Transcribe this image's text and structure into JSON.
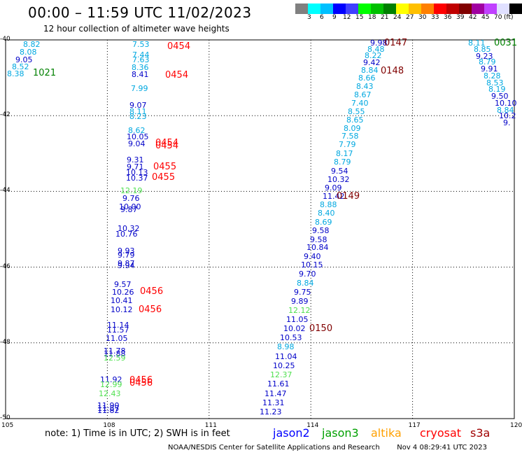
{
  "header": {
    "title": "00:00 – 11:59 UTC 11/02/2023",
    "subtitle": "12 hour collection of altimeter wave heights"
  },
  "legend": {
    "colors": [
      "#808080",
      "#00ffff",
      "#00c0ff",
      "#0000ff",
      "#4040ff",
      "#00ff00",
      "#00c000",
      "#008000",
      "#ffff00",
      "#ffc000",
      "#ff8000",
      "#ff0000",
      "#c00000",
      "#800000",
      "#a000a0",
      "#c040ff",
      "#e0e0ff",
      "#000000"
    ],
    "labels": [
      {
        "label": "3",
        "c": 1
      },
      {
        "label": "6",
        "c": 2
      },
      {
        "label": "9",
        "c": 3
      },
      {
        "label": "12",
        "c": 4
      },
      {
        "label": "15",
        "c": 5
      },
      {
        "label": "18",
        "c": 6
      },
      {
        "label": "21",
        "c": 7
      },
      {
        "label": "24",
        "c": 8
      },
      {
        "label": "27",
        "c": 9
      },
      {
        "label": "30",
        "c": 10
      },
      {
        "label": "33",
        "c": 11
      },
      {
        "label": "36",
        "c": 12
      },
      {
        "label": "39",
        "c": 13
      },
      {
        "label": "42",
        "c": 14
      },
      {
        "label": "45",
        "c": 15
      },
      {
        "label": "70",
        "c": 16
      },
      {
        "label": "(ft)",
        "c": 17
      }
    ]
  },
  "axes": {
    "lon": [
      "105",
      "108",
      "111",
      "114",
      "117",
      "120"
    ],
    "lat": [
      "-40",
      "-42",
      "-44",
      "-46",
      "-48",
      "-50"
    ],
    "lon_range": [
      105,
      120
    ],
    "lat_range": [
      -40,
      -50
    ]
  },
  "colors": {
    "cyan": "#00a8e0",
    "blue": "#0000c8",
    "green": "#50e050",
    "dark_green": "#008000",
    "red": "#ff0000",
    "dark_red": "#800000"
  },
  "measurements": [
    {
      "v": "8.82",
      "lon": 105.72,
      "lat": -40.12,
      "c": "cyan"
    },
    {
      "v": "8.08",
      "lon": 105.62,
      "lat": -40.32,
      "c": "cyan"
    },
    {
      "v": "9.05",
      "lon": 105.49,
      "lat": -40.52,
      "c": "blue"
    },
    {
      "v": "8.52",
      "lon": 105.39,
      "lat": -40.7,
      "c": "cyan"
    },
    {
      "v": "8.38",
      "lon": 105.25,
      "lat": -40.88,
      "c": "cyan"
    },
    {
      "v": "7.53",
      "lon": 108.95,
      "lat": -40.12,
      "c": "cyan"
    },
    {
      "v": "7.44",
      "lon": 108.95,
      "lat": -40.38,
      "c": "cyan"
    },
    {
      "v": "7.63",
      "lon": 108.95,
      "lat": -40.52,
      "c": "cyan"
    },
    {
      "v": "8.36",
      "lon": 108.92,
      "lat": -40.72,
      "c": "cyan"
    },
    {
      "v": "8.41",
      "lon": 108.92,
      "lat": -40.9,
      "c": "blue"
    },
    {
      "v": "7.99",
      "lon": 108.9,
      "lat": -41.28,
      "c": "cyan"
    },
    {
      "v": "9.07",
      "lon": 108.85,
      "lat": -41.72,
      "c": "blue"
    },
    {
      "v": "8.11",
      "lon": 108.85,
      "lat": -41.88,
      "c": "cyan"
    },
    {
      "v": "8.23",
      "lon": 108.85,
      "lat": -42.02,
      "c": "cyan"
    },
    {
      "v": "8.62",
      "lon": 108.82,
      "lat": -42.38,
      "c": "cyan"
    },
    {
      "v": "10.05",
      "lon": 108.78,
      "lat": -42.56,
      "c": "blue"
    },
    {
      "v": "9.04",
      "lon": 108.82,
      "lat": -42.74,
      "c": "blue"
    },
    {
      "v": "9.31",
      "lon": 108.78,
      "lat": -43.16,
      "c": "blue"
    },
    {
      "v": "9.71",
      "lon": 108.78,
      "lat": -43.34,
      "c": "blue"
    },
    {
      "v": "10.13",
      "lon": 108.75,
      "lat": -43.5,
      "c": "blue"
    },
    {
      "v": "10.37",
      "lon": 108.75,
      "lat": -43.64,
      "c": "blue"
    },
    {
      "v": "12.19",
      "lon": 108.6,
      "lat": -43.98,
      "c": "green"
    },
    {
      "v": "9.76",
      "lon": 108.65,
      "lat": -44.18,
      "c": "blue"
    },
    {
      "v": "10.00",
      "lon": 108.55,
      "lat": -44.4,
      "c": "blue"
    },
    {
      "v": "9.87",
      "lon": 108.6,
      "lat": -44.48,
      "c": "blue"
    },
    {
      "v": "10.32",
      "lon": 108.5,
      "lat": -44.98,
      "c": "blue"
    },
    {
      "v": "10.76",
      "lon": 108.45,
      "lat": -45.12,
      "c": "blue"
    },
    {
      "v": "9.93",
      "lon": 108.5,
      "lat": -45.56,
      "c": "blue"
    },
    {
      "v": "9.79",
      "lon": 108.5,
      "lat": -45.68,
      "c": "blue"
    },
    {
      "v": "9.87",
      "lon": 108.5,
      "lat": -45.9,
      "c": "blue"
    },
    {
      "v": "9.94",
      "lon": 108.5,
      "lat": -45.96,
      "c": "blue"
    },
    {
      "v": "9.57",
      "lon": 108.4,
      "lat": -46.46,
      "c": "blue"
    },
    {
      "v": "10.26",
      "lon": 108.35,
      "lat": -46.66,
      "c": "blue"
    },
    {
      "v": "10.41",
      "lon": 108.3,
      "lat": -46.88,
      "c": "blue"
    },
    {
      "v": "10.12",
      "lon": 108.3,
      "lat": -47.12,
      "c": "blue"
    },
    {
      "v": "11.14",
      "lon": 108.2,
      "lat": -47.52,
      "c": "blue"
    },
    {
      "v": "11.57",
      "lon": 108.2,
      "lat": -47.66,
      "c": "blue"
    },
    {
      "v": "11.05",
      "lon": 108.15,
      "lat": -47.88,
      "c": "blue"
    },
    {
      "v": "11.78",
      "lon": 108.1,
      "lat": -48.2,
      "c": "blue"
    },
    {
      "v": "11.88",
      "lon": 108.1,
      "lat": -48.28,
      "c": "blue"
    },
    {
      "v": "12.59",
      "lon": 108.1,
      "lat": -48.4,
      "c": "green"
    },
    {
      "v": "11.92",
      "lon": 108.0,
      "lat": -48.96,
      "c": "blue"
    },
    {
      "v": "12.99",
      "lon": 108.0,
      "lat": -49.1,
      "c": "green"
    },
    {
      "v": "12.43",
      "lon": 107.95,
      "lat": -49.34,
      "c": "green"
    },
    {
      "v": "11.90",
      "lon": 107.9,
      "lat": -49.64,
      "c": "blue"
    },
    {
      "v": "11.87",
      "lon": 107.9,
      "lat": -49.72,
      "c": "blue"
    },
    {
      "v": "11.82",
      "lon": 107.9,
      "lat": -49.78,
      "c": "blue"
    },
    {
      "v": "9.98",
      "lon": 115.95,
      "lat": -40.08,
      "c": "blue"
    },
    {
      "v": "8.48",
      "lon": 115.88,
      "lat": -40.24,
      "c": "cyan"
    },
    {
      "v": "8.22",
      "lon": 115.8,
      "lat": -40.4,
      "c": "cyan"
    },
    {
      "v": "9.42",
      "lon": 115.75,
      "lat": -40.6,
      "c": "blue"
    },
    {
      "v": "8.84",
      "lon": 115.68,
      "lat": -40.8,
      "c": "cyan"
    },
    {
      "v": "8.66",
      "lon": 115.6,
      "lat": -41.0,
      "c": "cyan"
    },
    {
      "v": "8.43",
      "lon": 115.55,
      "lat": -41.22,
      "c": "cyan"
    },
    {
      "v": "8.67",
      "lon": 115.48,
      "lat": -41.44,
      "c": "cyan"
    },
    {
      "v": "7.40",
      "lon": 115.4,
      "lat": -41.66,
      "c": "cyan"
    },
    {
      "v": "8.55",
      "lon": 115.3,
      "lat": -41.88,
      "c": "cyan"
    },
    {
      "v": "8.65",
      "lon": 115.25,
      "lat": -42.1,
      "c": "cyan"
    },
    {
      "v": "8.09",
      "lon": 115.18,
      "lat": -42.32,
      "c": "cyan"
    },
    {
      "v": "7.58",
      "lon": 115.1,
      "lat": -42.54,
      "c": "cyan"
    },
    {
      "v": "7.79",
      "lon": 115.02,
      "lat": -42.76,
      "c": "cyan"
    },
    {
      "v": "8.17",
      "lon": 114.95,
      "lat": -43.0,
      "c": "cyan"
    },
    {
      "v": "8.79",
      "lon": 114.88,
      "lat": -43.22,
      "c": "cyan"
    },
    {
      "v": "9.54",
      "lon": 114.8,
      "lat": -43.46,
      "c": "blue"
    },
    {
      "v": "10.32",
      "lon": 114.7,
      "lat": -43.68,
      "c": "blue"
    },
    {
      "v": "9.09",
      "lon": 114.62,
      "lat": -43.9,
      "c": "blue"
    },
    {
      "v": "11.42",
      "lon": 114.55,
      "lat": -44.12,
      "c": "blue"
    },
    {
      "v": "8.88",
      "lon": 114.48,
      "lat": -44.34,
      "c": "cyan"
    },
    {
      "v": "8.40",
      "lon": 114.4,
      "lat": -44.56,
      "c": "cyan"
    },
    {
      "v": "8.69",
      "lon": 114.32,
      "lat": -44.8,
      "c": "cyan"
    },
    {
      "v": "9.58",
      "lon": 114.25,
      "lat": -45.02,
      "c": "blue"
    },
    {
      "v": "9.58",
      "lon": 114.18,
      "lat": -45.26,
      "c": "blue"
    },
    {
      "v": "10.84",
      "lon": 114.08,
      "lat": -45.48,
      "c": "blue"
    },
    {
      "v": "9.40",
      "lon": 114.0,
      "lat": -45.72,
      "c": "blue"
    },
    {
      "v": "10.15",
      "lon": 113.92,
      "lat": -45.94,
      "c": "blue"
    },
    {
      "v": "9.70",
      "lon": 113.85,
      "lat": -46.18,
      "c": "blue"
    },
    {
      "v": "8.84",
      "lon": 113.78,
      "lat": -46.42,
      "c": "cyan"
    },
    {
      "v": "9.75",
      "lon": 113.7,
      "lat": -46.66,
      "c": "blue"
    },
    {
      "v": "9.89",
      "lon": 113.62,
      "lat": -46.9,
      "c": "blue"
    },
    {
      "v": "12.12",
      "lon": 113.55,
      "lat": -47.14,
      "c": "green"
    },
    {
      "v": "11.05",
      "lon": 113.48,
      "lat": -47.38,
      "c": "blue"
    },
    {
      "v": "10.02",
      "lon": 113.4,
      "lat": -47.62,
      "c": "blue"
    },
    {
      "v": "10.53",
      "lon": 113.3,
      "lat": -47.86,
      "c": "blue"
    },
    {
      "v": "8.98",
      "lon": 113.22,
      "lat": -48.1,
      "c": "cyan"
    },
    {
      "v": "11.04",
      "lon": 113.15,
      "lat": -48.36,
      "c": "blue"
    },
    {
      "v": "10.25",
      "lon": 113.08,
      "lat": -48.6,
      "c": "blue"
    },
    {
      "v": "12.37",
      "lon": 113.0,
      "lat": -48.84,
      "c": "green"
    },
    {
      "v": "11.61",
      "lon": 112.92,
      "lat": -49.08,
      "c": "blue"
    },
    {
      "v": "11.47",
      "lon": 112.85,
      "lat": -49.34,
      "c": "blue"
    },
    {
      "v": "11.31",
      "lon": 112.78,
      "lat": -49.58,
      "c": "blue"
    },
    {
      "v": "11.23",
      "lon": 112.7,
      "lat": -49.82,
      "c": "blue"
    },
    {
      "v": "8.11",
      "lon": 118.85,
      "lat": -40.08,
      "c": "cyan"
    },
    {
      "v": "8.85",
      "lon": 119.0,
      "lat": -40.24,
      "c": "cyan"
    },
    {
      "v": "9.23",
      "lon": 119.08,
      "lat": -40.42,
      "c": "blue"
    },
    {
      "v": "8.79",
      "lon": 119.15,
      "lat": -40.58,
      "c": "cyan"
    },
    {
      "v": "9.91",
      "lon": 119.22,
      "lat": -40.76,
      "c": "blue"
    },
    {
      "v": "8.28",
      "lon": 119.3,
      "lat": -40.94,
      "c": "cyan"
    },
    {
      "v": "8.53",
      "lon": 119.38,
      "lat": -41.12,
      "c": "cyan"
    },
    {
      "v": "8.19",
      "lon": 119.45,
      "lat": -41.3,
      "c": "cyan"
    },
    {
      "v": "9.50",
      "lon": 119.52,
      "lat": -41.48,
      "c": "blue"
    },
    {
      "v": "10.10",
      "lon": 119.62,
      "lat": -41.66,
      "c": "blue"
    },
    {
      "v": "8.84",
      "lon": 119.7,
      "lat": -41.84,
      "c": "cyan"
    },
    {
      "v": "10.2",
      "lon": 119.75,
      "lat": -42.0,
      "c": "blue"
    },
    {
      "v": "9.",
      "lon": 119.88,
      "lat": -42.18,
      "c": "blue"
    }
  ],
  "time_tags": [
    {
      "t": "0454",
      "lon": 110.05,
      "lat": -40.16,
      "c": "red"
    },
    {
      "t": "0454",
      "lon": 110.0,
      "lat": -40.92,
      "c": "red"
    },
    {
      "t": "0454",
      "lon": 109.7,
      "lat": -42.72,
      "c": "red"
    },
    {
      "t": "0454",
      "lon": 109.7,
      "lat": -42.8,
      "c": "red"
    },
    {
      "t": "0455",
      "lon": 109.65,
      "lat": -43.34,
      "c": "red"
    },
    {
      "t": "0455",
      "lon": 109.6,
      "lat": -43.62,
      "c": "red"
    },
    {
      "t": "0456",
      "lon": 109.25,
      "lat": -46.64,
      "c": "red"
    },
    {
      "t": "0456",
      "lon": 109.2,
      "lat": -47.12,
      "c": "red"
    },
    {
      "t": "0456",
      "lon": 108.95,
      "lat": -48.98,
      "c": "red"
    },
    {
      "t": "0456",
      "lon": 108.95,
      "lat": -49.06,
      "c": "red"
    },
    {
      "t": "0147",
      "lon": 116.45,
      "lat": -40.08,
      "c": "dark_red"
    },
    {
      "t": "0148",
      "lon": 116.35,
      "lat": -40.82,
      "c": "dark_red"
    },
    {
      "t": "0149",
      "lon": 115.05,
      "lat": -44.12,
      "c": "dark_red"
    },
    {
      "t": "0150",
      "lon": 114.25,
      "lat": -47.62,
      "c": "dark_red"
    },
    {
      "t": "1021",
      "lon": 106.1,
      "lat": -40.86,
      "c": "dark_green"
    },
    {
      "t": "0031",
      "lon": 119.7,
      "lat": -40.08,
      "c": "dark_green"
    }
  ],
  "footer": {
    "note": "note: 1) Time is in UTC; 2) SWH is in feet",
    "satellites": [
      {
        "name": "jason2",
        "color": "#0000ff"
      },
      {
        "name": "jason3",
        "color": "#00a000"
      },
      {
        "name": "altika",
        "color": "#ffa000"
      },
      {
        "name": "cryosat",
        "color": "#ff0000"
      },
      {
        "name": "s3a",
        "color": "#a00000"
      }
    ],
    "credit": "NOAA/NESDIS Center for Satellite Applications and Research",
    "timestamp": "Nov  4 08:29:41 UTC 2023"
  }
}
